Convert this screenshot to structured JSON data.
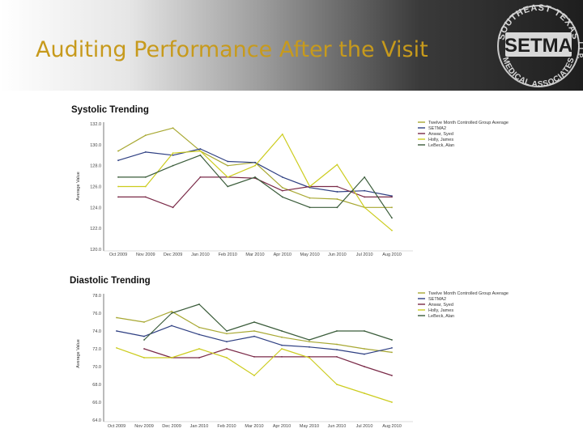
{
  "header": {
    "title": "Auditing Performance After the Visit",
    "logo": {
      "top_text": "SOUTHEAST TEXAS",
      "center_text": "SETMA",
      "bottom_text": "MEDICAL ASSOCIATES",
      "side_text": "L.L.P."
    }
  },
  "colors": {
    "title": "#c79a1c",
    "header_dark": "#1e1e1e",
    "header_light": "#ffffff"
  },
  "chart_data": [
    {
      "type": "line",
      "title": "Systolic Trending",
      "ylabel": "Average Value",
      "xlabel": "",
      "categories": [
        "Oct 2009",
        "Nov 2009",
        "Dec 2009",
        "Jan 2010",
        "Feb 2010",
        "Mar 2010",
        "Apr 2010",
        "May 2010",
        "Jun 2010",
        "Jul 2010",
        "Aug 2010"
      ],
      "ylim": [
        120.0,
        132.0
      ],
      "yticks": [
        "120.0",
        "122.0",
        "124.0",
        "126.0",
        "128.0",
        "130.0",
        "132.0"
      ],
      "grid": false,
      "legend": "top-right",
      "series": [
        {
          "name": "Twelve Month Controlled Group Average",
          "color": "#a8a832",
          "values": [
            129.4,
            130.9,
            131.6,
            129.4,
            128.0,
            128.3,
            125.9,
            124.9,
            124.8,
            124.0,
            124.0
          ]
        },
        {
          "name": "SETMA2",
          "color": "#2e3f82",
          "values": [
            128.5,
            129.3,
            129.0,
            129.6,
            128.4,
            128.3,
            126.9,
            125.9,
            125.5,
            125.6,
            125.1
          ]
        },
        {
          "name": "Anwar, Syed",
          "color": "#7a2a48",
          "values": [
            125.0,
            125.0,
            124.0,
            126.9,
            126.9,
            126.8,
            125.6,
            126.0,
            126.0,
            125.0,
            125.0
          ]
        },
        {
          "name": "Holly, James",
          "color": "#cccc1e",
          "values": [
            126.0,
            126.0,
            129.2,
            129.4,
            126.9,
            128.0,
            131.0,
            126.0,
            128.1,
            124.0,
            121.8
          ]
        },
        {
          "name": "LeBeck, Alan",
          "color": "#3a5c3a",
          "values": [
            126.9,
            126.9,
            128.0,
            129.0,
            126.0,
            126.9,
            125.0,
            124.0,
            124.0,
            126.9,
            123.0
          ]
        }
      ]
    },
    {
      "type": "line",
      "title": "Diastolic Trending",
      "ylabel": "Average Value",
      "xlabel": "",
      "categories": [
        "Oct 2009",
        "Nov 2009",
        "Dec 2009",
        "Jan 2010",
        "Feb 2010",
        "Mar 2010",
        "Apr 2010",
        "May 2010",
        "Jun 2010",
        "Jul 2010",
        "Aug 2010"
      ],
      "ylim": [
        64.0,
        78.0
      ],
      "yticks": [
        "64.0",
        "66.0",
        "68.0",
        "70.0",
        "72.0",
        "74.0",
        "76.0",
        "78.0"
      ],
      "grid": false,
      "legend": "top-right",
      "series": [
        {
          "name": "Twelve Month Controlled Group Average",
          "color": "#a8a832",
          "values": [
            75.5,
            75.0,
            76.2,
            74.4,
            73.7,
            74.0,
            73.3,
            72.8,
            72.5,
            72.0,
            71.6
          ]
        },
        {
          "name": "SETMA2",
          "color": "#2e3f82",
          "values": [
            74.0,
            73.4,
            74.6,
            73.6,
            72.8,
            73.4,
            72.4,
            72.2,
            71.9,
            71.4,
            72.1
          ]
        },
        {
          "name": "Anwar, Syed",
          "color": "#7a2a48",
          "values": [
            null,
            72.0,
            71.0,
            71.0,
            72.0,
            71.1,
            71.1,
            71.1,
            71.1,
            70.0,
            69.0
          ]
        },
        {
          "name": "Holly, James",
          "color": "#cccc1e",
          "values": [
            72.1,
            71.0,
            71.0,
            72.0,
            71.0,
            69.0,
            72.0,
            71.0,
            68.0,
            67.0,
            66.0
          ]
        },
        {
          "name": "LeBeck, Alan",
          "color": "#3a5c3a",
          "values": [
            null,
            73.0,
            76.0,
            77.0,
            74.0,
            75.0,
            74.0,
            73.0,
            74.0,
            74.0,
            73.0
          ]
        }
      ]
    }
  ]
}
